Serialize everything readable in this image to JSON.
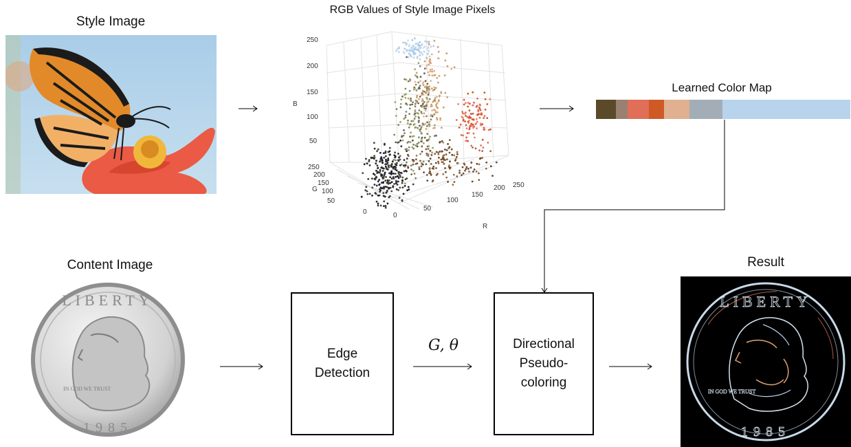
{
  "style_section": {
    "title": "Style Image"
  },
  "scatter_section": {
    "title": "RGB Values of Style Image Pixels",
    "axis_b": "B",
    "axis_g": "G",
    "axis_r": "R",
    "b_ticks": [
      "250",
      "200",
      "150",
      "100",
      "50"
    ],
    "g_ticks": [
      "250",
      "200",
      "150",
      "100",
      "50",
      "0"
    ],
    "r_ticks": [
      "0",
      "50",
      "100",
      "150",
      "200",
      "250"
    ]
  },
  "colormap_section": {
    "title": "Learned Color Map",
    "swatches": [
      "#5a4a2a",
      "#9a8070",
      "#e06e58",
      "#cf5a26",
      "#e0b090",
      "#a3adb8",
      "#b8d3ec"
    ]
  },
  "content_section": {
    "title": "Content Image",
    "coin_top_text": "LIBERTY",
    "coin_motto": "IN GOD WE TRUST",
    "coin_year": "1985"
  },
  "edge_box": {
    "label": "Edge\nDetection"
  },
  "arrow_label": "G, θ",
  "pseudo_box": {
    "label": "Directional\nPseudo-\ncoloring"
  },
  "result_section": {
    "title": "Result"
  }
}
